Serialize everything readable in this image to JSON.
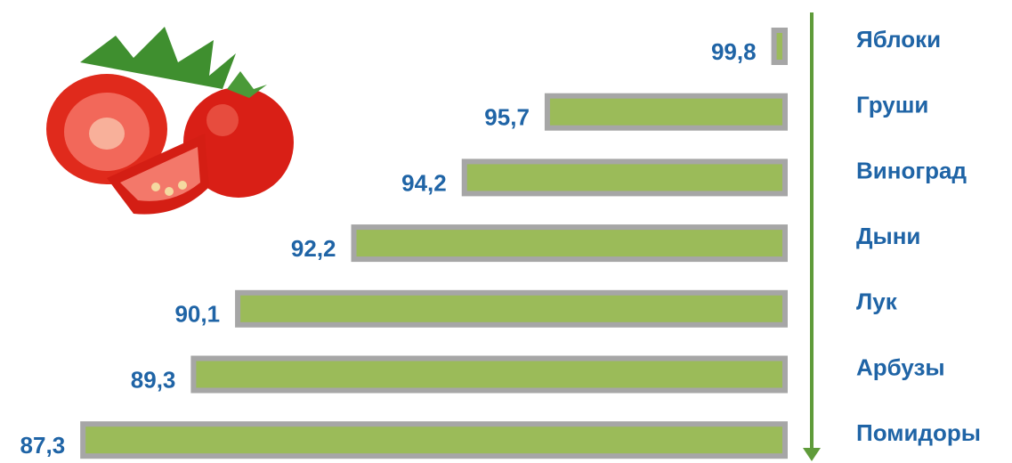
{
  "chart_data": {
    "type": "bar",
    "orientation": "horizontal",
    "categories": [
      "Яблоки",
      "Груши",
      "Виноград",
      "Дыни",
      "Лук",
      "Арбузы",
      "Помидоры"
    ],
    "values": [
      99.8,
      95.7,
      94.2,
      92.2,
      90.1,
      89.3,
      87.3
    ],
    "value_labels": [
      "99,8",
      "95,7",
      "94,2",
      "92,2",
      "90,1",
      "89,3",
      "87,3"
    ],
    "color": "#9bbb59",
    "border_color": "#a6a6a6",
    "xlim": [
      100,
      85.8
    ]
  }
}
